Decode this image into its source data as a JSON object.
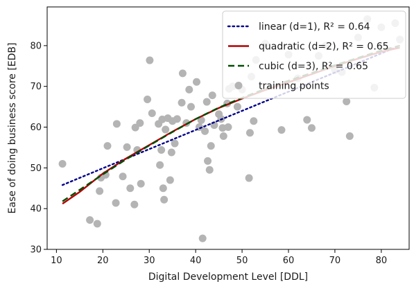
{
  "chart_data": {
    "type": "scatter",
    "title": "",
    "xlabel": "Digital Development Level [DDL]",
    "ylabel": "Ease of doing business score [EDB]",
    "xlim": [
      8,
      86
    ],
    "ylim": [
      30,
      89.5
    ],
    "xticks": [
      10,
      20,
      30,
      40,
      50,
      60,
      70,
      80
    ],
    "yticks": [
      30,
      40,
      50,
      60,
      70,
      80
    ],
    "grid": false,
    "legend_position": "top-right",
    "points_label": "training points",
    "points_color": "#b4b4b4",
    "points": [
      [
        11.3,
        51
      ],
      [
        17.2,
        37.2
      ],
      [
        18.8,
        36.3
      ],
      [
        19.3,
        44.3
      ],
      [
        19.6,
        47.6
      ],
      [
        20.6,
        48.3
      ],
      [
        21.0,
        55.4
      ],
      [
        22.8,
        41.4
      ],
      [
        23.0,
        60.8
      ],
      [
        24.3,
        47.9
      ],
      [
        25.2,
        55.1
      ],
      [
        25.9,
        45.0
      ],
      [
        26.8,
        41.0
      ],
      [
        27.0,
        59.9
      ],
      [
        27.4,
        54.4
      ],
      [
        28.0,
        61.0
      ],
      [
        28.2,
        46.1
      ],
      [
        29.6,
        66.8
      ],
      [
        30.1,
        76.4
      ],
      [
        30.6,
        63.4
      ],
      [
        32.0,
        60.8
      ],
      [
        32.3,
        50.7
      ],
      [
        32.6,
        54.4
      ],
      [
        32.8,
        61.9
      ],
      [
        33.0,
        45.0
      ],
      [
        33.2,
        42.2
      ],
      [
        33.5,
        59.4
      ],
      [
        34.0,
        62.2
      ],
      [
        34.5,
        47.0
      ],
      [
        34.8,
        53.8
      ],
      [
        35.0,
        61.5
      ],
      [
        35.5,
        56.0
      ],
      [
        36.0,
        62.0
      ],
      [
        37.0,
        66.0
      ],
      [
        37.2,
        73.2
      ],
      [
        38.0,
        61.0
      ],
      [
        38.6,
        69.2
      ],
      [
        39.0,
        65.0
      ],
      [
        40.2,
        71.1
      ],
      [
        40.8,
        60.0
      ],
      [
        41.2,
        61.7
      ],
      [
        41.5,
        32.7
      ],
      [
        42.0,
        59.0
      ],
      [
        42.4,
        66.2
      ],
      [
        42.6,
        51.7
      ],
      [
        43.0,
        49.5
      ],
      [
        43.3,
        55.4
      ],
      [
        43.6,
        67.8
      ],
      [
        44.0,
        60.5
      ],
      [
        45.0,
        63.2
      ],
      [
        45.5,
        62.0
      ],
      [
        45.8,
        59.8
      ],
      [
        46.0,
        57.8
      ],
      [
        46.8,
        65.8
      ],
      [
        47.0,
        60.0
      ],
      [
        47.2,
        69.4
      ],
      [
        48.0,
        70.0
      ],
      [
        49.0,
        65.0
      ],
      [
        50.0,
        69.2
      ],
      [
        51.5,
        47.5
      ],
      [
        51.7,
        58.6
      ],
      [
        52.0,
        72.4
      ],
      [
        52.5,
        61.5
      ],
      [
        53.0,
        76.5
      ],
      [
        55.0,
        80.5
      ],
      [
        58.5,
        59.3
      ],
      [
        60.0,
        77.8
      ],
      [
        62.0,
        72.0
      ],
      [
        64.0,
        61.8
      ],
      [
        65.0,
        59.8
      ],
      [
        66.5,
        77.5
      ],
      [
        68.0,
        80.0
      ],
      [
        70.0,
        74.0
      ],
      [
        71.5,
        73.5
      ],
      [
        72.5,
        66.3
      ],
      [
        73.2,
        57.8
      ],
      [
        75.0,
        82.0
      ],
      [
        77.0,
        86.5
      ],
      [
        78.5,
        69.7
      ],
      [
        80.0,
        84.5
      ],
      [
        83.0,
        85.5
      ],
      [
        84.0,
        81.5
      ]
    ],
    "series": [
      {
        "name": "linear (d=1), R² = 0.64",
        "degree": 1,
        "color": "#00008b",
        "style": "dotted",
        "x": [
          11.3,
          20,
          30,
          40,
          50,
          60,
          70,
          80,
          84
        ],
        "y": [
          45.8,
          49.9,
          54.6,
          59.3,
          64.0,
          68.7,
          73.4,
          78.1,
          80.0
        ]
      },
      {
        "name": "quadratic (d=2), R² = 0.65",
        "degree": 2,
        "color": "#b30000",
        "style": "solid",
        "x": [
          11.3,
          15,
          20,
          25,
          30,
          35,
          40,
          45,
          50,
          55,
          60,
          65,
          70,
          75,
          80,
          84
        ],
        "y": [
          41.2,
          44.1,
          48.6,
          52.3,
          55.6,
          58.9,
          62.0,
          64.7,
          67.0,
          69.1,
          71.0,
          73.0,
          75.0,
          76.8,
          78.5,
          79.5
        ]
      },
      {
        "name": "cubic (d=3), R² = 0.65",
        "degree": 3,
        "color": "#004d00",
        "style": "dashed",
        "x": [
          11.3,
          15,
          20,
          25,
          30,
          35,
          40,
          45,
          50,
          55,
          60,
          65,
          70,
          75,
          80,
          84
        ],
        "y": [
          41.8,
          44.6,
          48.4,
          52.1,
          55.5,
          58.8,
          62.0,
          64.8,
          67.2,
          69.4,
          71.4,
          73.3,
          75.2,
          77.0,
          78.8,
          80.0
        ]
      }
    ]
  }
}
